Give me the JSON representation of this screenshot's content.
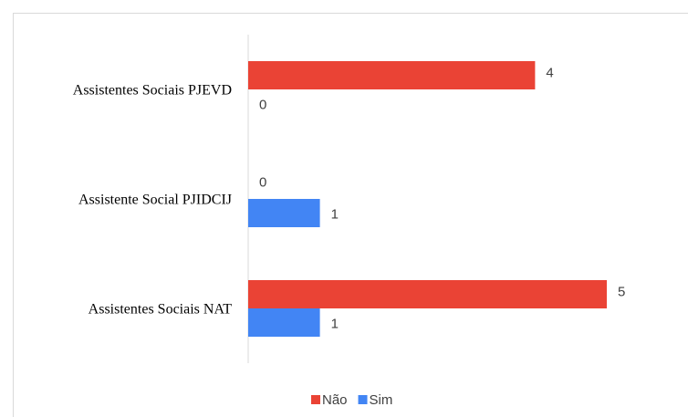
{
  "chart_data": {
    "type": "barh",
    "categories": [
      "Assistentes Sociais PJEVD",
      "Assistente Social PJIDCIJ",
      "Assistentes Sociais NAT"
    ],
    "series": [
      {
        "name": "Não",
        "color": "#ea4335",
        "values": [
          4,
          0,
          5
        ]
      },
      {
        "name": "Sim",
        "color": "#4285f4",
        "values": [
          0,
          1,
          1
        ]
      }
    ],
    "xlim": [
      0,
      5
    ],
    "legend": "bottom"
  }
}
